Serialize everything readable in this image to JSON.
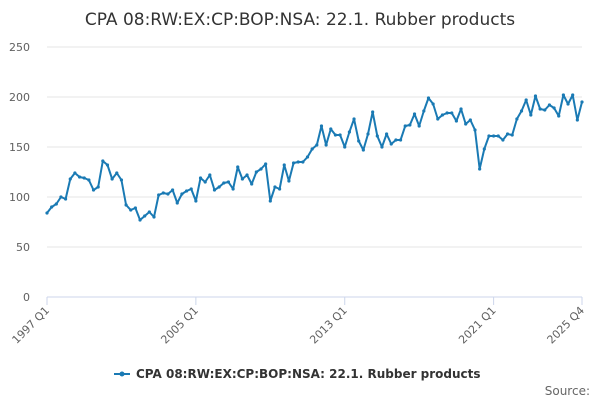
{
  "chart_data": {
    "type": "line",
    "title": "CPA 08:RW:EX:CP:BOP:NSA: 22.1. Rubber products",
    "xlabel": "",
    "ylabel": "",
    "ylim": [
      0,
      250
    ],
    "yticks": [
      "0",
      "50",
      "100",
      "150",
      "200",
      "250"
    ],
    "x_tick_labels": [
      "1997 Q1",
      "2005 Q1",
      "2013 Q1",
      "2021 Q1",
      "2025 Q4"
    ],
    "x_start": "1997 Q1",
    "x_end": "2025 Q4",
    "series_color": "#1a7ab4",
    "grid": true,
    "legend_position": "bottom",
    "series": [
      {
        "name": "CPA 08:RW:EX:CP:BOP:NSA: 22.1. Rubber products",
        "values": [
          84,
          90,
          93,
          100,
          98,
          118,
          124,
          120,
          119,
          117,
          107,
          110,
          136,
          132,
          118,
          124,
          117,
          92,
          87,
          89,
          77,
          81,
          85,
          80,
          102,
          104,
          103,
          107,
          94,
          103,
          106,
          108,
          96,
          119,
          115,
          122,
          107,
          110,
          114,
          115,
          108,
          130,
          118,
          122,
          113,
          125,
          128,
          133,
          96,
          110,
          108,
          132,
          116,
          134,
          135,
          135,
          140,
          148,
          152,
          171,
          152,
          168,
          162,
          162,
          150,
          165,
          178,
          156,
          147,
          163,
          185,
          161,
          150,
          163,
          153,
          157,
          157,
          171,
          172,
          183,
          171,
          186,
          199,
          193,
          178,
          182,
          184,
          184,
          176,
          188,
          173,
          177,
          167,
          128,
          148,
          161,
          161,
          161,
          157,
          163,
          162,
          178,
          186,
          197,
          182,
          201,
          188,
          187,
          192,
          189,
          181,
          202,
          193,
          202,
          177,
          195
        ]
      }
    ]
  },
  "legend": {
    "label": "CPA 08:RW:EX:CP:BOP:NSA: 22.1. Rubber products"
  },
  "credits": {
    "label": "Source:"
  }
}
